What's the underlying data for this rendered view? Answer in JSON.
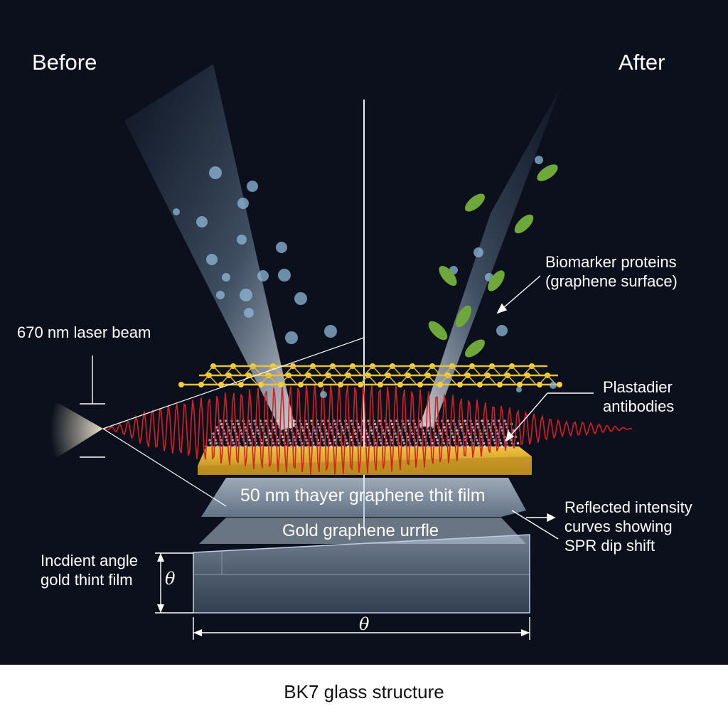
{
  "labels": {
    "before": "Before",
    "after": "After",
    "laser": "670 nm laser beam",
    "biomarker": "Biomarker proteins\n(graphene surface)",
    "antibodies": "Plastadier\nantibodies",
    "reflected": "Reflected intensity\ncurves showing\nSPR dip shift",
    "layer1": "50 nm thayer graphene thit film",
    "layer2": "Gold graphene urrfle",
    "incident": "Incdient angle\ngold thint film",
    "theta_vertical": "θ",
    "theta_horizontal": "θ",
    "caption": "BK7 glass structure"
  },
  "colors": {
    "background": "#0b101c",
    "gold": "#d4a82a",
    "graphene_lattice": "#e6c23a",
    "wave": "#d42020",
    "blue_molecules": "#8fb8d8",
    "green_proteins": "#6ea83a",
    "glass": "#a8c4e0"
  }
}
